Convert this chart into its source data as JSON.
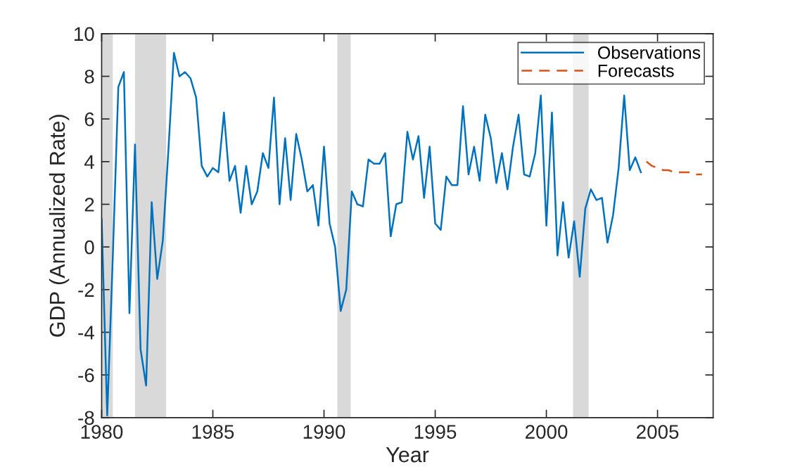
{
  "chart_data": {
    "type": "line",
    "xlabel": "Year",
    "ylabel": "GDP (Annualized Rate)",
    "xlim": [
      1980,
      2007.5
    ],
    "xticks": [
      1980,
      1985,
      1990,
      1995,
      2000,
      2005
    ],
    "ylim": [
      -8,
      10
    ],
    "yticks": [
      -8,
      -6,
      -4,
      -2,
      0,
      2,
      4,
      6,
      8,
      10
    ],
    "grid": false,
    "legend": "top right",
    "marker": "none",
    "bands": [
      {
        "axis": "x",
        "from": 1980.0,
        "to": 1980.5,
        "color": "#d9d9d9"
      },
      {
        "axis": "x",
        "from": 1981.5,
        "to": 1982.9,
        "color": "#d9d9d9"
      },
      {
        "axis": "x",
        "from": 1990.6,
        "to": 1991.2,
        "color": "#d9d9d9"
      },
      {
        "axis": "x",
        "from": 2001.2,
        "to": 2001.9,
        "color": "#d9d9d9"
      }
    ],
    "series": [
      {
        "name": "Observations",
        "color": "#0072bd",
        "line_style": "solid",
        "x": [
          1980.0,
          1980.25,
          1980.5,
          1980.75,
          1981.0,
          1981.25,
          1981.5,
          1981.75,
          1982.0,
          1982.25,
          1982.5,
          1982.75,
          1983.0,
          1983.25,
          1983.5,
          1983.75,
          1984.0,
          1984.25,
          1984.5,
          1984.75,
          1985.0,
          1985.25,
          1985.5,
          1985.75,
          1986.0,
          1986.25,
          1986.5,
          1986.75,
          1987.0,
          1987.25,
          1987.5,
          1987.75,
          1988.0,
          1988.25,
          1988.5,
          1988.75,
          1989.0,
          1989.25,
          1989.5,
          1989.75,
          1990.0,
          1990.25,
          1990.5,
          1990.75,
          1991.0,
          1991.25,
          1991.5,
          1991.75,
          1992.0,
          1992.25,
          1992.5,
          1992.75,
          1993.0,
          1993.25,
          1993.5,
          1993.75,
          1994.0,
          1994.25,
          1994.5,
          1994.75,
          1995.0,
          1995.25,
          1995.5,
          1995.75,
          1996.0,
          1996.25,
          1996.5,
          1996.75,
          1997.0,
          1997.25,
          1997.5,
          1997.75,
          1998.0,
          1998.25,
          1998.5,
          1998.75,
          1999.0,
          1999.25,
          1999.5,
          1999.75,
          2000.0,
          2000.25,
          2000.5,
          2000.75,
          2001.0,
          2001.25,
          2001.5,
          2001.75,
          2002.0,
          2002.25,
          2002.5,
          2002.75,
          2003.0,
          2003.25,
          2003.5,
          2003.75,
          2004.0,
          2004.25
        ],
        "values": [
          1.3,
          -7.9,
          -0.5,
          7.5,
          8.2,
          -3.1,
          4.8,
          -4.8,
          -6.5,
          2.1,
          -1.5,
          0.3,
          4.5,
          9.1,
          8.0,
          8.2,
          7.9,
          7.0,
          3.8,
          3.3,
          3.7,
          3.5,
          6.3,
          3.1,
          3.8,
          1.6,
          3.8,
          2.0,
          2.6,
          4.4,
          3.7,
          7.0,
          2.0,
          5.1,
          2.2,
          5.3,
          4.1,
          2.6,
          2.9,
          1.0,
          4.7,
          1.1,
          0.0,
          -3.0,
          -2.0,
          2.6,
          2.0,
          1.9,
          4.1,
          3.9,
          3.9,
          4.4,
          0.5,
          2.0,
          2.1,
          5.4,
          4.1,
          5.2,
          2.3,
          4.7,
          1.1,
          0.8,
          3.3,
          2.9,
          2.9,
          6.6,
          3.4,
          4.7,
          3.1,
          6.2,
          5.1,
          3.0,
          4.4,
          2.7,
          4.7,
          6.2,
          3.4,
          3.3,
          4.4,
          7.1,
          1.0,
          6.3,
          -0.4,
          2.1,
          -0.5,
          1.2,
          -1.4,
          1.8,
          2.7,
          2.2,
          2.3,
          0.2,
          1.5,
          3.7,
          7.1,
          3.6,
          4.2,
          3.5
        ]
      },
      {
        "name": "Forecasts",
        "color": "#d95319",
        "line_style": "dashed",
        "x": [
          2004.5,
          2004.75,
          2005.0,
          2005.25,
          2005.5,
          2005.75,
          2006.0,
          2006.25,
          2006.5,
          2006.75,
          2007.0
        ],
        "values": [
          4.0,
          3.8,
          3.7,
          3.6,
          3.6,
          3.5,
          3.5,
          3.5,
          3.5,
          3.4,
          3.4
        ]
      }
    ]
  }
}
